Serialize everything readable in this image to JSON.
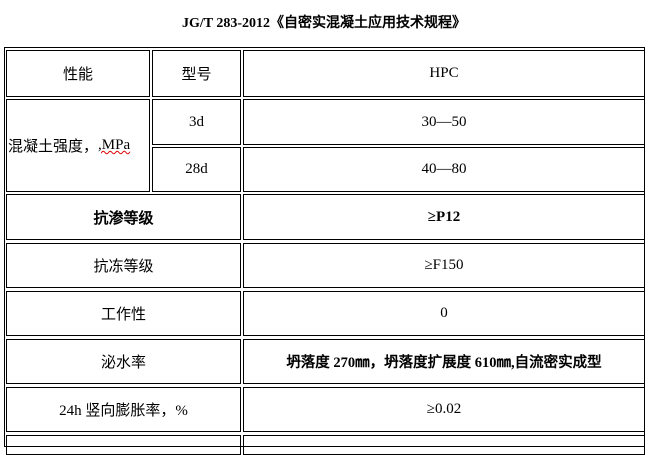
{
  "title": "JG/T 283-2012《自密实混凝土应用技术规程》",
  "header": {
    "property": "性能",
    "model": "型号",
    "value": "HPC"
  },
  "strength": {
    "label": "混凝土强度，",
    "unit": ",MPa",
    "rows": [
      {
        "age": "3d",
        "value": "30—50"
      },
      {
        "age": "28d",
        "value": "40—80"
      }
    ]
  },
  "rows": [
    {
      "label": "抗渗等级",
      "value": "≥P12",
      "bold": true
    },
    {
      "label": "抗冻等级",
      "value": "≥F150"
    },
    {
      "label": "工作性",
      "value": "0"
    },
    {
      "label": "泌水率",
      "value": "坍落度 270㎜，坍落度扩展度 610㎜,自流密实成型",
      "bold_value": true
    },
    {
      "label": "24h 竖向膨胀率，%",
      "value": "≥0.02"
    }
  ]
}
